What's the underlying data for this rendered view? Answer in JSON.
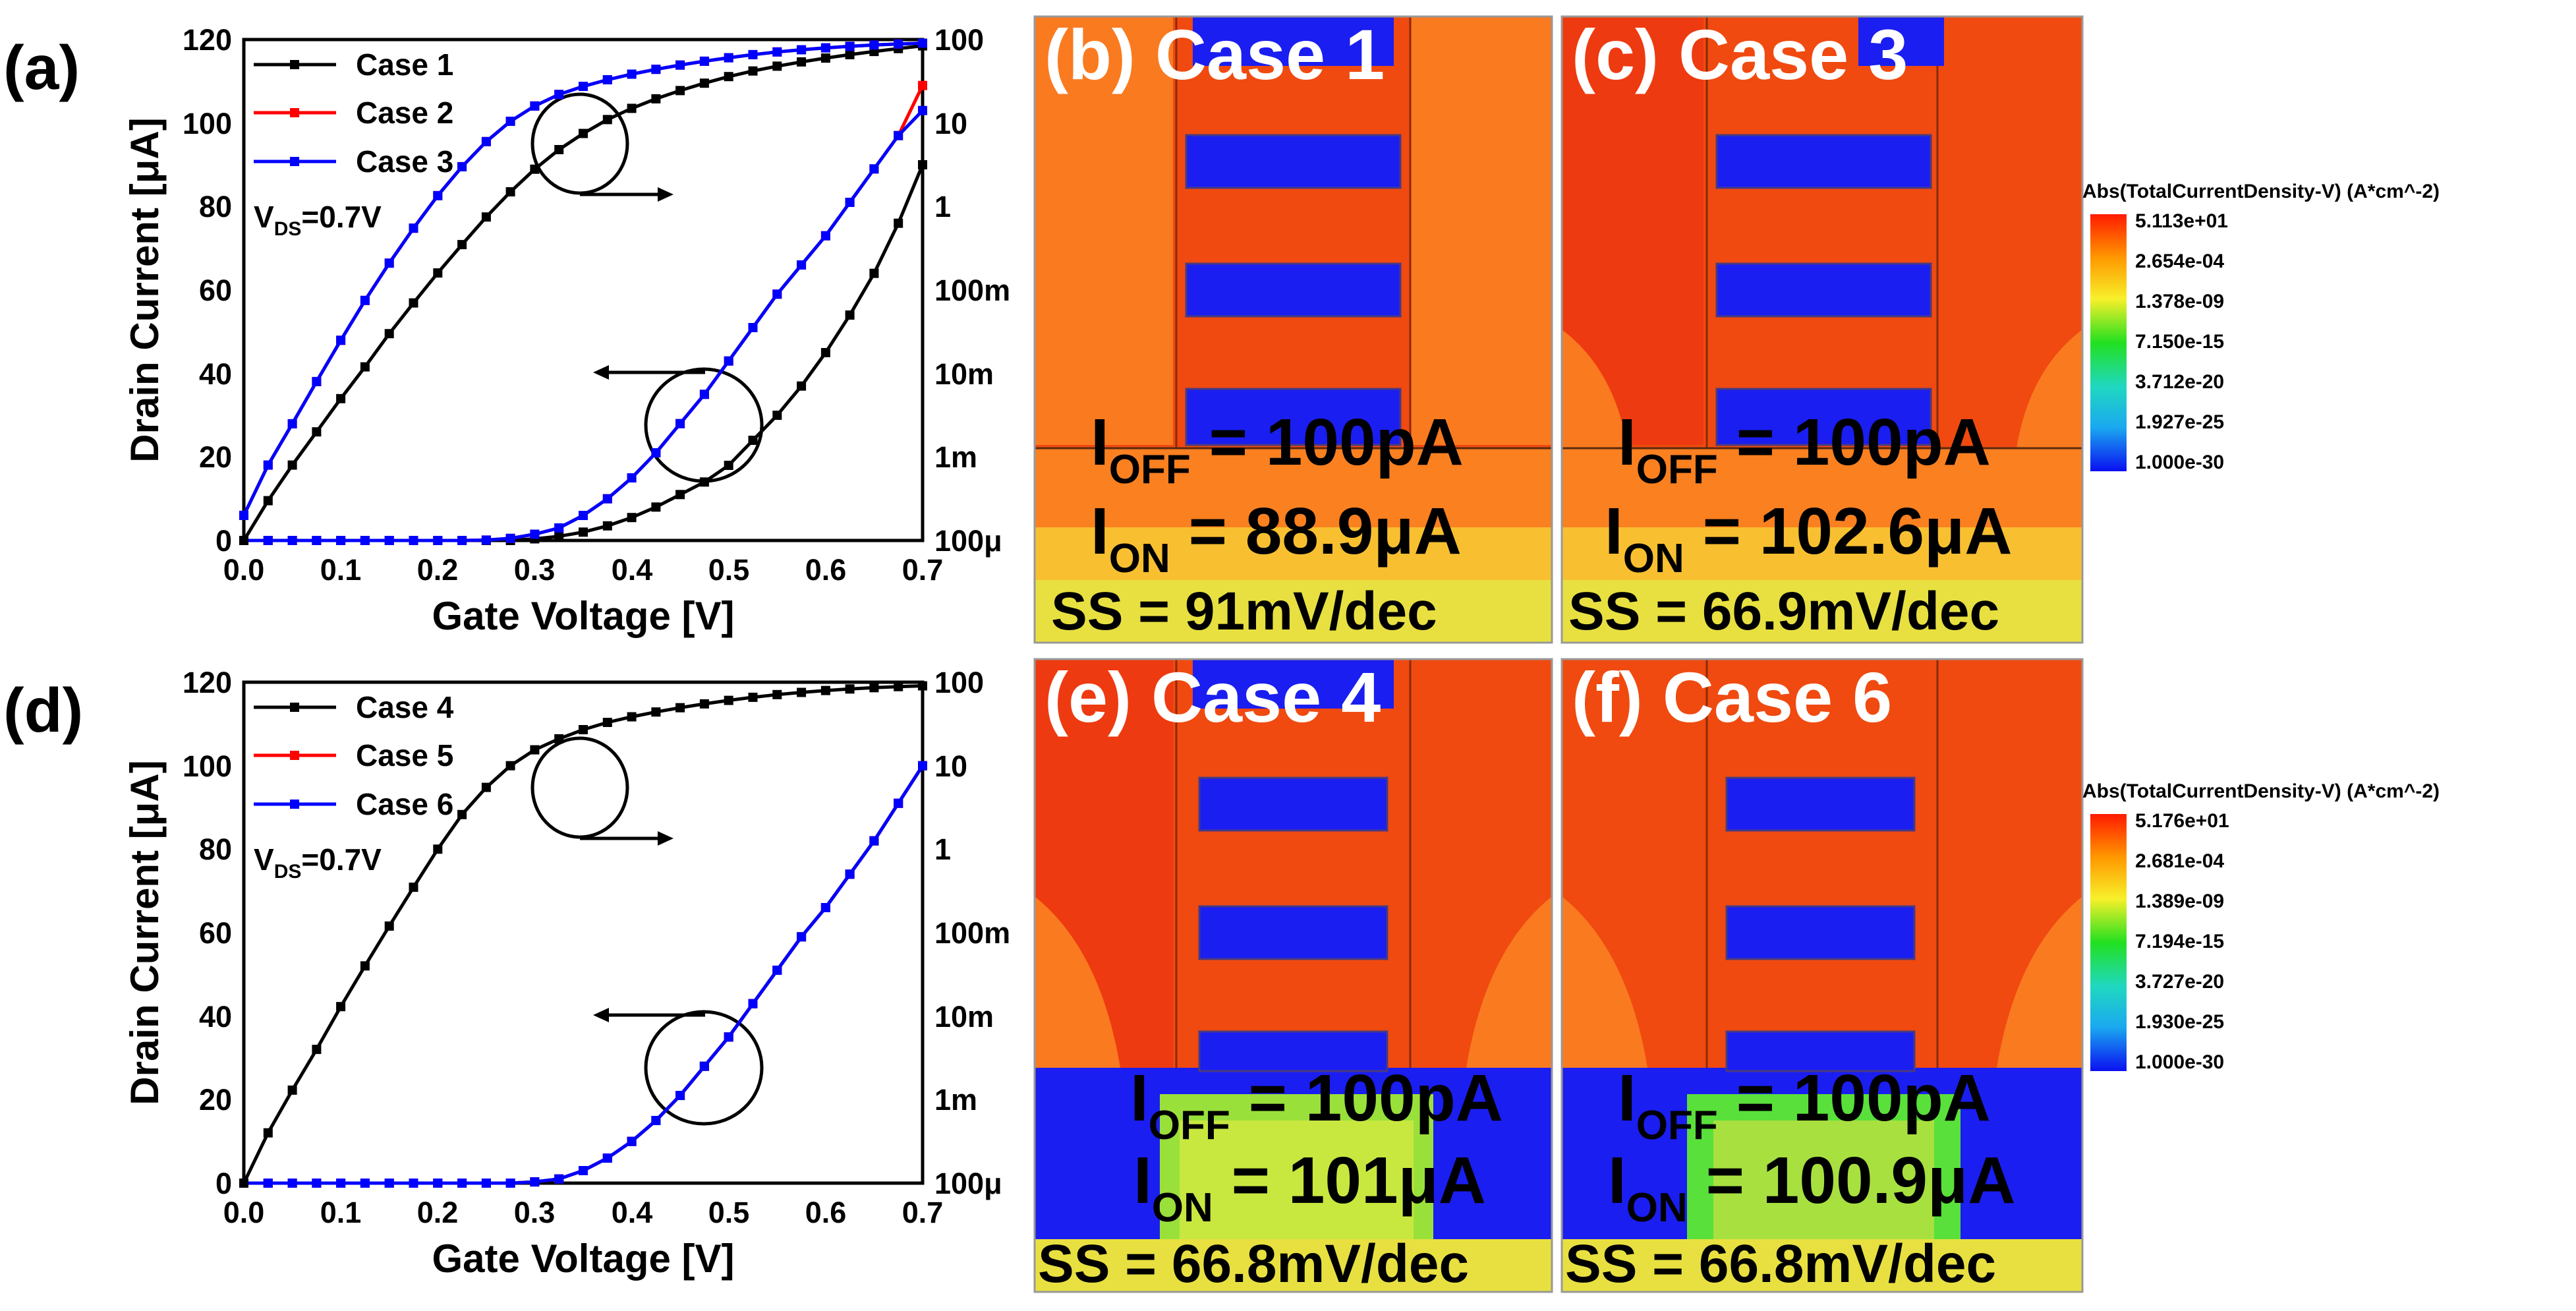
{
  "panel_labels": [
    "(a)",
    "(d)"
  ],
  "chart_data": [
    {
      "type": "line",
      "panel": "(a)",
      "xlabel": "Gate Voltage [V]",
      "ylabel": "Drain Current [μA]",
      "xlim": [
        0.0,
        0.7
      ],
      "ylim": [
        0,
        120
      ],
      "xticks": [
        "0.0",
        "0.1",
        "0.2",
        "0.3",
        "0.4",
        "0.5",
        "0.6",
        "0.7"
      ],
      "yticks": [
        "0",
        "20",
        "40",
        "60",
        "80",
        "100",
        "120"
      ],
      "y2ticks": [
        "100μ",
        "1m",
        "10m",
        "100m",
        "1",
        "10",
        "100"
      ],
      "legend": [
        "Case 1",
        "Case 2",
        "Case 3"
      ],
      "annotation": {
        "main": "V",
        "sub": "DS",
        "value": "=0.7V"
      },
      "x": [
        0,
        0.025,
        0.05,
        0.075,
        0.1,
        0.125,
        0.15,
        0.175,
        0.2,
        0.225,
        0.25,
        0.275,
        0.3,
        0.325,
        0.35,
        0.375,
        0.4,
        0.425,
        0.45,
        0.475,
        0.5,
        0.525,
        0.55,
        0.575,
        0.6,
        0.625,
        0.65,
        0.675,
        0.7
      ],
      "series": [
        {
          "name": "Case 1",
          "color": "#000000",
          "axis": "left",
          "values": [
            0,
            0,
            0,
            0,
            0,
            0,
            0,
            0,
            0,
            0,
            0,
            0,
            0.4,
            1,
            2,
            3.5,
            5.5,
            8,
            11,
            14,
            18,
            24,
            30,
            37,
            45,
            54,
            64,
            76,
            90
          ]
        },
        {
          "name": "Case 2",
          "color": "#ff0000",
          "axis": "left",
          "values": [
            0,
            0,
            0,
            0,
            0,
            0,
            0,
            0,
            0,
            0,
            0.1,
            0.5,
            1.5,
            3,
            6,
            10,
            15,
            21,
            28,
            35,
            43,
            51,
            59,
            66,
            73,
            81,
            89,
            97,
            109
          ]
        },
        {
          "name": "Case 3",
          "color": "#0000ff",
          "axis": "left",
          "values": [
            0,
            0,
            0,
            0,
            0,
            0,
            0,
            0,
            0,
            0,
            0.1,
            0.5,
            1.5,
            3,
            6,
            10,
            15,
            21,
            28,
            35,
            43,
            51,
            59,
            66,
            73,
            81,
            89,
            97,
            103
          ]
        },
        {
          "name": "Case 1",
          "color": "#000000",
          "axis": "right",
          "values": [
            0.0001,
            0.0003,
            0.0008,
            0.002,
            0.005,
            0.012,
            0.03,
            0.07,
            0.16,
            0.35,
            0.75,
            1.5,
            2.8,
            4.8,
            7.5,
            11,
            15,
            19.5,
            24.5,
            30,
            36,
            42,
            48,
            54,
            60,
            66,
            72,
            78,
            84
          ]
        },
        {
          "name": "Case 2",
          "color": "#ff0000",
          "axis": "right",
          "values": [
            0.0002,
            0.0008,
            0.0025,
            0.008,
            0.025,
            0.075,
            0.21,
            0.55,
            1.35,
            3,
            6,
            10.5,
            16,
            22,
            27.5,
            33,
            38.5,
            44,
            49.5,
            55,
            60.5,
            66,
            71,
            75.5,
            79.5,
            83,
            86,
            88.5,
            90.5
          ]
        },
        {
          "name": "Case 3",
          "color": "#0000ff",
          "axis": "right",
          "values": [
            0.0002,
            0.0008,
            0.0025,
            0.008,
            0.025,
            0.075,
            0.21,
            0.55,
            1.35,
            3,
            6,
            10.5,
            16,
            22,
            27.5,
            33,
            38.5,
            44,
            49.5,
            55,
            60.5,
            66,
            71,
            75.5,
            79.5,
            83,
            86,
            88.5,
            90.5
          ]
        }
      ]
    },
    {
      "type": "line",
      "panel": "(d)",
      "xlabel": "Gate Voltage [V]",
      "ylabel": "Drain Current [μA]",
      "xlim": [
        0.0,
        0.7
      ],
      "ylim": [
        0,
        120
      ],
      "xticks": [
        "0.0",
        "0.1",
        "0.2",
        "0.3",
        "0.4",
        "0.5",
        "0.6",
        "0.7"
      ],
      "yticks": [
        "0",
        "20",
        "40",
        "60",
        "80",
        "100",
        "120"
      ],
      "y2ticks": [
        "100μ",
        "1m",
        "10m",
        "100m",
        "1",
        "10",
        "100"
      ],
      "legend": [
        "Case 4",
        "Case 5",
        "Case 6"
      ],
      "annotation": {
        "main": "V",
        "sub": "DS",
        "value": "=0.7V"
      },
      "x": [
        0,
        0.025,
        0.05,
        0.075,
        0.1,
        0.125,
        0.15,
        0.175,
        0.2,
        0.225,
        0.25,
        0.275,
        0.3,
        0.325,
        0.35,
        0.375,
        0.4,
        0.425,
        0.45,
        0.475,
        0.5,
        0.525,
        0.55,
        0.575,
        0.6,
        0.625,
        0.65,
        0.675,
        0.7
      ],
      "series": [
        {
          "name": "Case 4",
          "color": "#000000",
          "axis": "left",
          "values": [
            0,
            0,
            0,
            0,
            0,
            0,
            0,
            0,
            0,
            0,
            0,
            0,
            0.3,
            1,
            3,
            6,
            10,
            15,
            21,
            28,
            35,
            43,
            51,
            59,
            66,
            74,
            82,
            91,
            100
          ]
        },
        {
          "name": "Case 5",
          "color": "#ff0000",
          "axis": "left",
          "values": [
            0,
            0,
            0,
            0,
            0,
            0,
            0,
            0,
            0,
            0,
            0,
            0,
            0.3,
            1,
            3,
            6,
            10,
            15,
            21,
            28,
            35,
            43,
            51,
            59,
            66,
            74,
            82,
            91,
            100
          ]
        },
        {
          "name": "Case 6",
          "color": "#0000ff",
          "axis": "left",
          "values": [
            0,
            0,
            0,
            0,
            0,
            0,
            0,
            0,
            0,
            0,
            0,
            0,
            0.3,
            1,
            3,
            6,
            10,
            15,
            21,
            28,
            35,
            43,
            51,
            59,
            66,
            74,
            82,
            91,
            100
          ]
        },
        {
          "name": "Case 4",
          "color": "#000000",
          "axis": "right",
          "values": [
            0.0001,
            0.0004,
            0.0013,
            0.004,
            0.013,
            0.04,
            0.12,
            0.35,
            1,
            2.6,
            5.5,
            10,
            15.5,
            21,
            27,
            33,
            38.5,
            44,
            49.5,
            55,
            60.5,
            66,
            71,
            75.5,
            79.5,
            83,
            86,
            88.5,
            90.5
          ]
        }
      ]
    }
  ],
  "maps": [
    {
      "label": "(b) Case 1",
      "ioff_main": "I",
      "ioff_sub": "OFF",
      "ioff_val": " = 100pA",
      "ion_main": "I",
      "ion_sub": "ON",
      "ion_val": " = 88.9μA",
      "ss": "SS = 91mV/dec"
    },
    {
      "label": "(c) Case 3",
      "ioff_main": "I",
      "ioff_sub": "OFF",
      "ioff_val": " = 100pA",
      "ion_main": "I",
      "ion_sub": "ON",
      "ion_val": " = 102.6μA",
      "ss": "SS = 66.9mV/dec"
    },
    {
      "label": "(e) Case 4",
      "ioff_main": "I",
      "ioff_sub": "OFF",
      "ioff_val": " = 100pA",
      "ion_main": "I",
      "ion_sub": "ON",
      "ion_val": " = 101μA",
      "ss": "SS = 66.8mV/dec"
    },
    {
      "label": "(f) Case 6",
      "ioff_main": "I",
      "ioff_sub": "OFF",
      "ioff_val": " = 100pA",
      "ion_main": "I",
      "ion_sub": "ON",
      "ion_val": " = 100.9μA",
      "ss": "SS = 66.8mV/dec"
    }
  ],
  "colorbars": [
    {
      "title": "Abs(TotalCurrentDensity-V) (A*cm^-2)",
      "values": [
        "5.113e+01",
        "2.654e-04",
        "1.378e-09",
        "7.150e-15",
        "3.712e-20",
        "1.927e-25",
        "1.000e-30"
      ]
    },
    {
      "title": "Abs(TotalCurrentDensity-V) (A*cm^-2)",
      "values": [
        "5.176e+01",
        "2.681e-04",
        "1.389e-09",
        "7.194e-15",
        "3.727e-20",
        "1.930e-25",
        "1.000e-30"
      ]
    }
  ],
  "colors": {
    "hot": "#f63d0b",
    "warm": "#ff7a1a",
    "mid": "#f5d42a",
    "green": "#7be04a",
    "blue": "#1a1ef0",
    "line": "#000000"
  }
}
